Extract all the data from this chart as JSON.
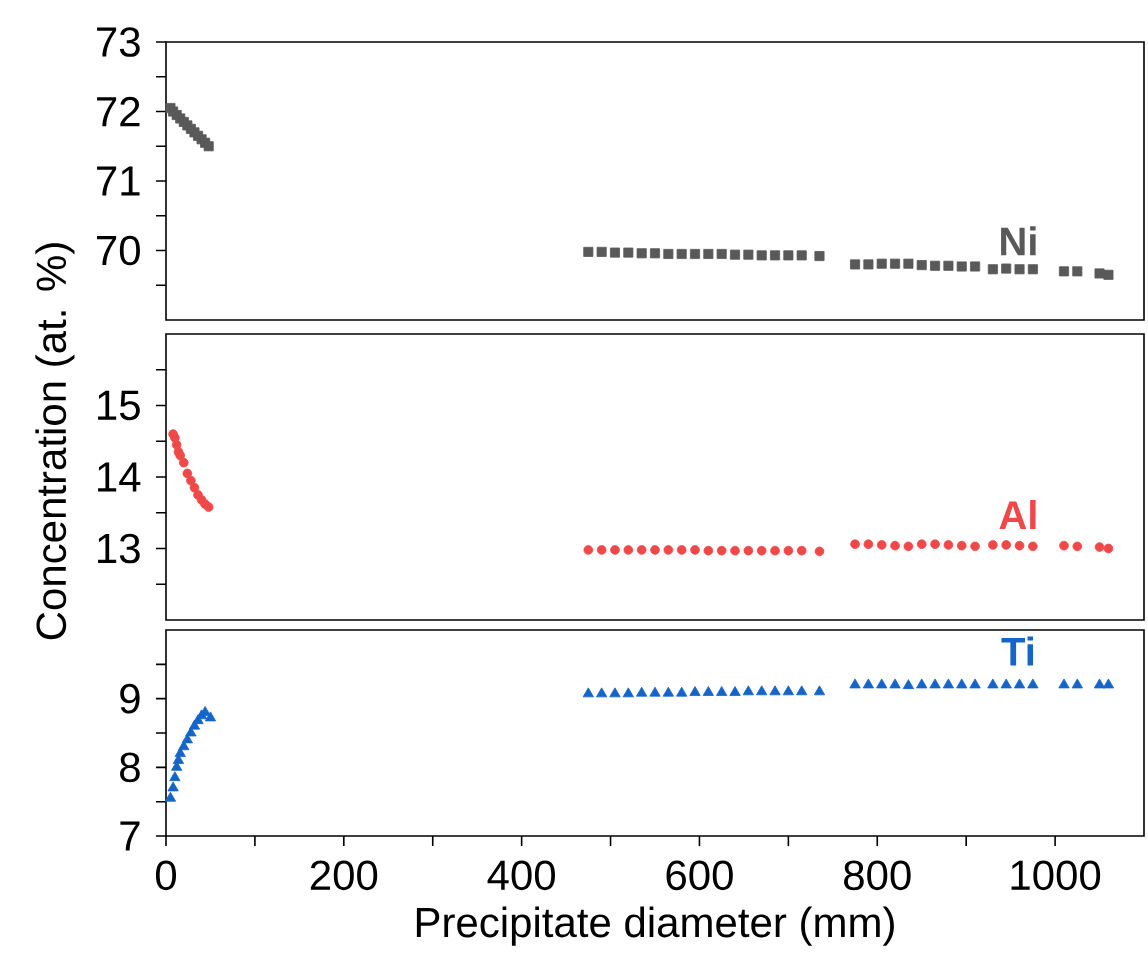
{
  "chart_data": [
    {
      "type": "scatter",
      "marker": "square",
      "xlim": [
        0,
        1100
      ],
      "ylim": [
        69,
        73
      ],
      "tick_labels": "y",
      "yticks": [
        {
          "value": 69.5,
          "label": null
        },
        70,
        {
          "value": 70.5,
          "label": null
        },
        71,
        {
          "value": 71.5,
          "label": null
        },
        72,
        {
          "value": 72.5,
          "label": null
        },
        73
      ],
      "series": [
        {
          "name": "Ni",
          "color": "#595959",
          "x": [
            5,
            8,
            12,
            16,
            20,
            24,
            28,
            32,
            36,
            40,
            44,
            48,
            475,
            490,
            505,
            520,
            535,
            550,
            565,
            580,
            595,
            610,
            625,
            640,
            655,
            670,
            685,
            700,
            715,
            735,
            775,
            790,
            805,
            820,
            835,
            850,
            865,
            880,
            895,
            910,
            930,
            945,
            960,
            975,
            1010,
            1025,
            1050,
            1060
          ],
          "values": [
            72.05,
            72.0,
            71.95,
            71.9,
            71.85,
            71.8,
            71.75,
            71.7,
            71.65,
            71.6,
            71.55,
            71.5,
            69.98,
            69.98,
            69.97,
            69.97,
            69.96,
            69.96,
            69.95,
            69.95,
            69.95,
            69.95,
            69.95,
            69.94,
            69.94,
            69.93,
            69.93,
            69.93,
            69.93,
            69.92,
            69.8,
            69.8,
            69.81,
            69.81,
            69.81,
            69.79,
            69.78,
            69.78,
            69.77,
            69.77,
            69.73,
            69.74,
            69.73,
            69.73,
            69.7,
            69.7,
            69.67,
            69.65
          ]
        }
      ]
    },
    {
      "type": "scatter",
      "marker": "circle",
      "xlim": [
        0,
        1100
      ],
      "ylim": [
        12,
        16
      ],
      "tick_labels": "y",
      "ylabel": "Concentration (at. %)",
      "yticks": [
        {
          "value": 12.5,
          "label": null
        },
        13,
        {
          "value": 13.5,
          "label": null
        },
        14,
        {
          "value": 14.5,
          "label": null
        },
        15,
        {
          "value": 15.5,
          "label": null
        }
      ],
      "series": [
        {
          "name": "Al",
          "color": "#f04848",
          "x": [
            8,
            10,
            12,
            14,
            16,
            20,
            24,
            28,
            32,
            36,
            40,
            44,
            48,
            475,
            490,
            505,
            520,
            535,
            550,
            565,
            580,
            595,
            610,
            625,
            640,
            655,
            670,
            685,
            700,
            715,
            735,
            775,
            790,
            805,
            820,
            835,
            850,
            865,
            880,
            895,
            910,
            930,
            945,
            960,
            975,
            1010,
            1025,
            1050,
            1060
          ],
          "values": [
            14.6,
            14.55,
            14.45,
            14.35,
            14.3,
            14.2,
            14.05,
            13.95,
            13.85,
            13.75,
            13.68,
            13.62,
            13.58,
            12.98,
            12.98,
            12.98,
            12.98,
            12.98,
            12.98,
            12.98,
            12.98,
            12.98,
            12.97,
            12.97,
            12.97,
            12.97,
            12.97,
            12.97,
            12.97,
            12.97,
            12.96,
            13.06,
            13.06,
            13.05,
            13.04,
            13.03,
            13.06,
            13.06,
            13.05,
            13.04,
            13.03,
            13.05,
            13.05,
            13.04,
            13.03,
            13.04,
            13.03,
            13.02,
            13.0
          ]
        }
      ]
    },
    {
      "type": "scatter",
      "marker": "triangle",
      "xlim": [
        0,
        1100
      ],
      "ylim": [
        7,
        10
      ],
      "xlabel": "Precipitate diameter (mm)",
      "xticks": [
        0,
        {
          "value": 100,
          "label": null
        },
        200,
        {
          "value": 300,
          "label": null
        },
        400,
        {
          "value": 500,
          "label": null
        },
        600,
        {
          "value": 700,
          "label": null
        },
        800,
        {
          "value": 900,
          "label": null
        },
        1000
      ],
      "yticks": [
        7,
        {
          "value": 7.5,
          "label": null
        },
        8,
        {
          "value": 8.5,
          "label": null
        },
        9,
        {
          "value": 9.5,
          "label": null
        }
      ],
      "series": [
        {
          "name": "Ti",
          "color": "#1565c8",
          "x": [
            5,
            8,
            10,
            12,
            14,
            16,
            20,
            24,
            28,
            32,
            36,
            40,
            44,
            50,
            475,
            490,
            505,
            520,
            535,
            550,
            565,
            580,
            595,
            610,
            625,
            640,
            655,
            670,
            685,
            700,
            715,
            735,
            775,
            790,
            805,
            820,
            835,
            850,
            865,
            880,
            895,
            910,
            930,
            945,
            960,
            975,
            1010,
            1025,
            1050,
            1060
          ],
          "values": [
            7.55,
            7.7,
            7.85,
            8.0,
            8.1,
            8.2,
            8.3,
            8.4,
            8.5,
            8.6,
            8.68,
            8.75,
            8.8,
            8.72,
            9.07,
            9.07,
            9.07,
            9.07,
            9.08,
            9.08,
            9.08,
            9.08,
            9.09,
            9.09,
            9.09,
            9.09,
            9.1,
            9.1,
            9.1,
            9.1,
            9.1,
            9.1,
            9.2,
            9.2,
            9.2,
            9.2,
            9.19,
            9.2,
            9.2,
            9.2,
            9.2,
            9.2,
            9.2,
            9.2,
            9.2,
            9.2,
            9.2,
            9.2,
            9.2,
            9.2
          ]
        }
      ]
    }
  ]
}
